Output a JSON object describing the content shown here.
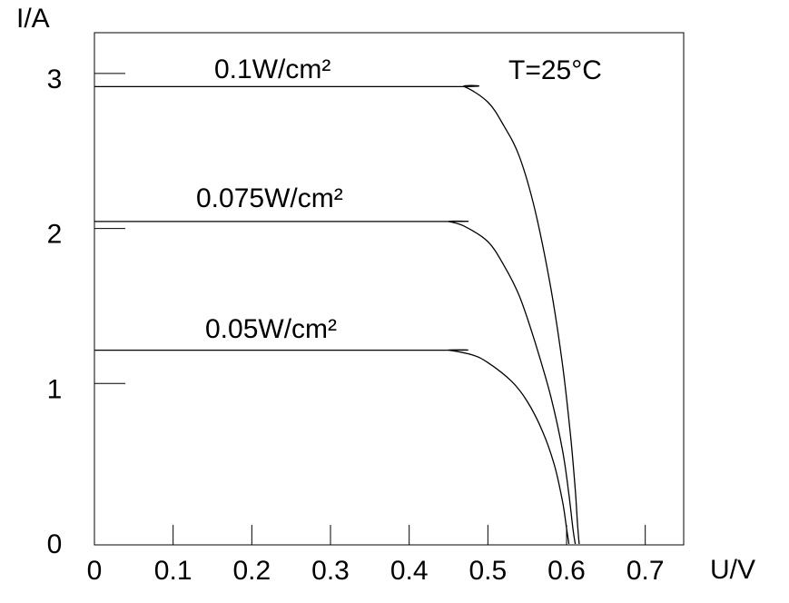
{
  "chart_data": {
    "type": "line",
    "ylabel": "I/A",
    "xlabel": "U/V",
    "xlim": [
      0,
      0.75
    ],
    "ylim": [
      0,
      3.2
    ],
    "x_ticks": [
      0,
      0.1,
      0.2,
      0.3,
      0.4,
      0.5,
      0.6,
      0.7
    ],
    "x_tick_labels": [
      "0",
      "0.1",
      "0.2",
      "0.3",
      "0.4",
      "0.5",
      "0.6",
      "0.7"
    ],
    "y_ticks": [
      0,
      1,
      2,
      3
    ],
    "y_tick_labels": [
      "0",
      "1",
      "2",
      "3"
    ],
    "grid": false,
    "annotation": "T=25°C",
    "series": [
      {
        "name": "0.1W/cm²",
        "x": [
          0,
          0.45,
          0.47,
          0.5,
          0.52,
          0.54,
          0.56,
          0.58,
          0.595,
          0.605,
          0.611,
          0.614,
          0.616
        ],
        "y": [
          2.95,
          2.95,
          2.95,
          2.85,
          2.7,
          2.5,
          2.15,
          1.65,
          1.15,
          0.7,
          0.35,
          0.12,
          0
        ]
      },
      {
        "name": "0.075W/cm²",
        "x": [
          0,
          0.44,
          0.45,
          0.47,
          0.5,
          0.52,
          0.54,
          0.56,
          0.58,
          0.595,
          0.603,
          0.608,
          0.611
        ],
        "y": [
          2.08,
          2.08,
          2.08,
          2.05,
          1.95,
          1.8,
          1.6,
          1.3,
          0.95,
          0.6,
          0.32,
          0.1,
          0
        ]
      },
      {
        "name": "0.05W/cm²",
        "x": [
          0,
          0.44,
          0.45,
          0.48,
          0.5,
          0.53,
          0.55,
          0.57,
          0.585,
          0.595,
          0.6,
          0.603
        ],
        "y": [
          1.25,
          1.25,
          1.25,
          1.22,
          1.17,
          1.05,
          0.92,
          0.72,
          0.5,
          0.27,
          0.1,
          0
        ]
      }
    ]
  }
}
